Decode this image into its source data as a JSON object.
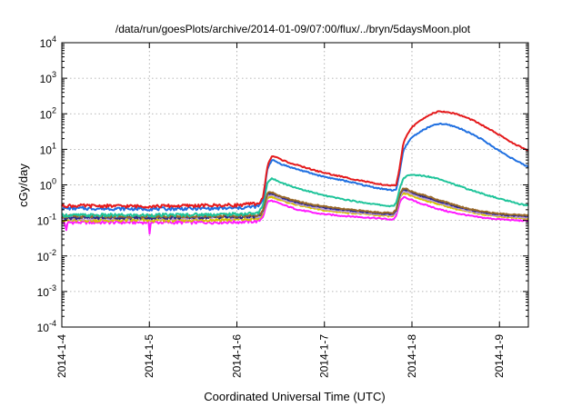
{
  "chart_data": {
    "type": "line",
    "title": "/data/run/goesPlots/archive/2014-01-09/07:00/flux/../bryn/5daysMoon.plot",
    "xlabel": "Coordinated Universal Time (UTC)",
    "ylabel": "cGy/day",
    "x_unit": "day of January 2014",
    "xlim": [
      4.0,
      9.33
    ],
    "ylim": [
      0.0001,
      10000
    ],
    "yscale": "log",
    "grid": true,
    "legend": "none",
    "x_ticks": [
      4,
      5,
      6,
      7,
      8,
      9
    ],
    "x_tick_labels": [
      "2014-1-4",
      "2014-1-5",
      "2014-1-6",
      "2014-1-7",
      "2014-1-8",
      "2014-1-9"
    ],
    "y_ticks": [
      {
        "value": 0.0001,
        "base": "10",
        "exp": "-4"
      },
      {
        "value": 0.001,
        "base": "10",
        "exp": "-3"
      },
      {
        "value": 0.01,
        "base": "10",
        "exp": "-2"
      },
      {
        "value": 0.1,
        "base": "10",
        "exp": "-1"
      },
      {
        "value": 1,
        "base": "10",
        "exp": "0"
      },
      {
        "value": 10,
        "base": "10",
        "exp": "1"
      },
      {
        "value": 100,
        "base": "10",
        "exp": "2"
      },
      {
        "value": 1000,
        "base": "10",
        "exp": "3"
      },
      {
        "value": 10000,
        "base": "10",
        "exp": "4"
      }
    ],
    "series": [
      {
        "color": "#e41a1c",
        "x": [
          4.0,
          5.0,
          6.0,
          6.25,
          6.3,
          6.35,
          6.4,
          6.45,
          6.5,
          6.6,
          6.7,
          6.8,
          6.9,
          7.0,
          7.1,
          7.2,
          7.3,
          7.4,
          7.5,
          7.6,
          7.7,
          7.78,
          7.82,
          7.86,
          7.9,
          7.95,
          8.0,
          8.1,
          8.2,
          8.3,
          8.4,
          8.5,
          8.6,
          8.7,
          8.8,
          8.9,
          9.0,
          9.1,
          9.2,
          9.33
        ],
        "y": [
          0.26,
          0.25,
          0.27,
          0.3,
          0.45,
          3.5,
          6.5,
          6.0,
          5.2,
          4.2,
          3.5,
          3.0,
          2.5,
          2.2,
          1.9,
          1.7,
          1.5,
          1.35,
          1.2,
          1.05,
          1.0,
          0.95,
          1.0,
          3.0,
          14,
          28,
          42,
          65,
          95,
          115,
          112,
          100,
          82,
          65,
          48,
          35,
          25,
          18,
          13,
          9.0
        ]
      },
      {
        "color": "#1f6fe0",
        "x": [
          4.0,
          5.0,
          6.0,
          6.25,
          6.3,
          6.35,
          6.4,
          6.45,
          6.5,
          6.6,
          6.7,
          6.8,
          6.9,
          7.0,
          7.1,
          7.2,
          7.3,
          7.4,
          7.5,
          7.6,
          7.7,
          7.78,
          7.82,
          7.86,
          7.9,
          7.95,
          8.0,
          8.1,
          8.2,
          8.3,
          8.4,
          8.5,
          8.6,
          8.7,
          8.8,
          8.9,
          9.0,
          9.1,
          9.2,
          9.33
        ],
        "y": [
          0.22,
          0.21,
          0.22,
          0.25,
          0.38,
          3.0,
          5.0,
          4.5,
          3.9,
          3.2,
          2.7,
          2.3,
          1.95,
          1.7,
          1.5,
          1.35,
          1.2,
          1.05,
          0.92,
          0.82,
          0.75,
          0.7,
          0.75,
          2.2,
          9.0,
          15,
          22,
          32,
          43,
          52,
          50,
          43,
          34,
          26,
          19,
          13,
          9.0,
          6.5,
          4.6,
          3.2
        ]
      },
      {
        "color": "#1fc49a",
        "x": [
          4.0,
          5.0,
          6.0,
          6.25,
          6.3,
          6.35,
          6.4,
          6.5,
          6.6,
          6.7,
          6.8,
          6.9,
          7.0,
          7.2,
          7.4,
          7.6,
          7.7,
          7.78,
          7.82,
          7.86,
          7.9,
          7.95,
          8.0,
          8.1,
          8.2,
          8.3,
          8.4,
          8.5,
          8.6,
          8.7,
          8.8,
          8.9,
          9.0,
          9.1,
          9.2,
          9.33
        ],
        "y": [
          0.14,
          0.14,
          0.15,
          0.16,
          0.28,
          1.2,
          1.5,
          1.2,
          0.95,
          0.8,
          0.68,
          0.58,
          0.5,
          0.4,
          0.33,
          0.28,
          0.26,
          0.25,
          0.3,
          0.8,
          1.5,
          1.8,
          1.9,
          1.85,
          1.7,
          1.5,
          1.25,
          1.0,
          0.82,
          0.68,
          0.57,
          0.48,
          0.41,
          0.35,
          0.3,
          0.26
        ]
      },
      {
        "color": "#9a6a2a",
        "x": [
          4.0,
          5.0,
          6.0,
          6.25,
          6.3,
          6.35,
          6.4,
          6.5,
          6.6,
          6.7,
          6.8,
          6.9,
          7.0,
          7.2,
          7.4,
          7.6,
          7.7,
          7.78,
          7.82,
          7.86,
          7.9,
          7.95,
          8.0,
          8.1,
          8.2,
          8.3,
          8.4,
          8.5,
          8.6,
          8.7,
          8.8,
          8.9,
          9.0,
          9.1,
          9.2,
          9.33
        ],
        "y": [
          0.13,
          0.13,
          0.135,
          0.14,
          0.2,
          0.6,
          0.62,
          0.48,
          0.4,
          0.34,
          0.3,
          0.27,
          0.25,
          0.21,
          0.19,
          0.17,
          0.165,
          0.16,
          0.2,
          0.55,
          0.8,
          0.75,
          0.65,
          0.55,
          0.46,
          0.38,
          0.32,
          0.27,
          0.23,
          0.2,
          0.18,
          0.165,
          0.155,
          0.148,
          0.142,
          0.138
        ]
      },
      {
        "color": "#2a2a88",
        "x": [
          4.0,
          5.0,
          6.0,
          6.25,
          6.3,
          6.35,
          6.4,
          6.5,
          6.6,
          6.7,
          6.8,
          6.9,
          7.0,
          7.2,
          7.4,
          7.6,
          7.7,
          7.78,
          7.82,
          7.86,
          7.9,
          7.95,
          8.0,
          8.1,
          8.2,
          8.3,
          8.4,
          8.5,
          8.6,
          8.7,
          8.8,
          8.9,
          9.0,
          9.1,
          9.2,
          9.33
        ],
        "y": [
          0.12,
          0.12,
          0.125,
          0.13,
          0.19,
          0.56,
          0.58,
          0.45,
          0.37,
          0.32,
          0.28,
          0.25,
          0.23,
          0.2,
          0.18,
          0.16,
          0.155,
          0.15,
          0.19,
          0.52,
          0.75,
          0.7,
          0.6,
          0.5,
          0.42,
          0.35,
          0.3,
          0.25,
          0.22,
          0.19,
          0.17,
          0.157,
          0.148,
          0.14,
          0.135,
          0.13
        ]
      },
      {
        "color": "#b89ad8",
        "x": [
          4.0,
          5.0,
          6.0,
          6.25,
          6.3,
          6.35,
          6.4,
          6.5,
          6.6,
          6.7,
          6.8,
          6.9,
          7.0,
          7.2,
          7.4,
          7.6,
          7.7,
          7.78,
          7.82,
          7.86,
          7.9,
          7.95,
          8.0,
          8.1,
          8.2,
          8.3,
          8.4,
          8.5,
          8.6,
          8.7,
          8.8,
          8.9,
          9.0,
          9.1,
          9.2,
          9.33
        ],
        "y": [
          0.115,
          0.115,
          0.12,
          0.125,
          0.18,
          0.5,
          0.52,
          0.41,
          0.34,
          0.29,
          0.26,
          0.23,
          0.21,
          0.185,
          0.165,
          0.15,
          0.145,
          0.14,
          0.17,
          0.46,
          0.66,
          0.62,
          0.54,
          0.45,
          0.38,
          0.32,
          0.27,
          0.23,
          0.2,
          0.175,
          0.158,
          0.145,
          0.137,
          0.13,
          0.125,
          0.12
        ]
      },
      {
        "color": "#d6c400",
        "x": [
          4.0,
          5.0,
          6.0,
          6.25,
          6.3,
          6.35,
          6.4,
          6.5,
          6.6,
          6.7,
          6.8,
          6.9,
          7.0,
          7.2,
          7.4,
          7.6,
          7.7,
          7.78,
          7.82,
          7.86,
          7.9,
          7.95,
          8.0,
          8.1,
          8.2,
          8.3,
          8.4,
          8.5,
          8.6,
          8.7,
          8.8,
          8.9,
          9.0,
          9.1,
          9.2,
          9.33
        ],
        "y": [
          0.1,
          0.1,
          0.105,
          0.11,
          0.16,
          0.44,
          0.46,
          0.37,
          0.31,
          0.27,
          0.24,
          0.21,
          0.19,
          0.17,
          0.155,
          0.14,
          0.135,
          0.13,
          0.16,
          0.42,
          0.58,
          0.55,
          0.48,
          0.4,
          0.34,
          0.29,
          0.25,
          0.21,
          0.185,
          0.165,
          0.15,
          0.138,
          0.13,
          0.123,
          0.118,
          0.113
        ]
      },
      {
        "color": "#ff1aff",
        "x": [
          4.0,
          4.03,
          4.05,
          4.07,
          4.5,
          4.99,
          5.0,
          5.01,
          5.5,
          6.0,
          6.25,
          6.3,
          6.35,
          6.4,
          6.5,
          6.6,
          6.7,
          6.8,
          6.9,
          7.0,
          7.2,
          7.4,
          7.6,
          7.7,
          7.78,
          7.82,
          7.86,
          7.9,
          7.95,
          8.0,
          8.1,
          8.2,
          8.3,
          8.4,
          8.5,
          8.6,
          8.7,
          8.8,
          8.9,
          9.0,
          9.1,
          9.2,
          9.33
        ],
        "y": [
          0.09,
          0.09,
          0.055,
          0.088,
          0.088,
          0.088,
          0.035,
          0.088,
          0.088,
          0.09,
          0.095,
          0.13,
          0.34,
          0.36,
          0.29,
          0.24,
          0.2,
          0.18,
          0.16,
          0.15,
          0.135,
          0.125,
          0.115,
          0.11,
          0.105,
          0.13,
          0.32,
          0.45,
          0.42,
          0.37,
          0.3,
          0.25,
          0.21,
          0.18,
          0.16,
          0.145,
          0.13,
          0.12,
          0.113,
          0.108,
          0.104,
          0.1,
          0.097
        ]
      }
    ]
  }
}
